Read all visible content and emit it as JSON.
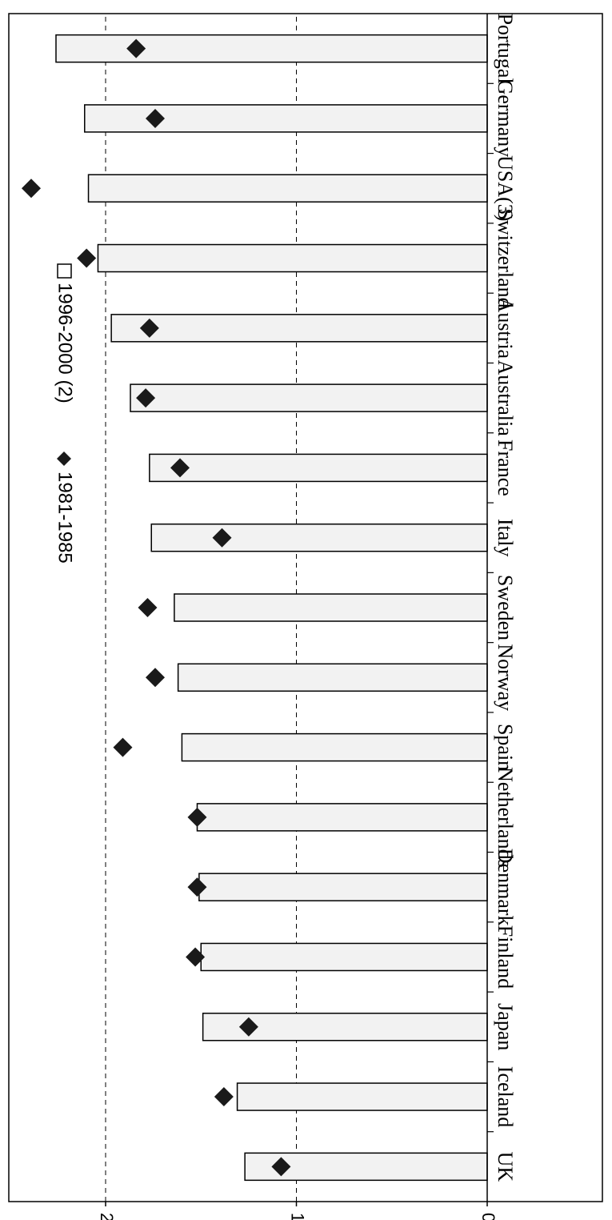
{
  "chart_data": {
    "type": "bar",
    "orientation": "rotated-180",
    "categories": [
      "UK",
      "Iceland",
      "Japan",
      "Finland",
      "Denmark",
      "Netherlands",
      "Spain",
      "Norway",
      "Sweden",
      "Italy",
      "France",
      "Australia",
      "Austria",
      "Switzerland",
      "USA(3)",
      "Germany",
      "Portugal"
    ],
    "series": [
      {
        "name": "1996-2000 (2)",
        "kind": "bar",
        "values": [
          1.27,
          1.31,
          1.49,
          1.5,
          1.51,
          1.52,
          1.6,
          1.62,
          1.64,
          1.76,
          1.77,
          1.87,
          1.97,
          2.04,
          2.09,
          2.11,
          2.26
        ]
      },
      {
        "name": "1981-1985",
        "kind": "marker",
        "values": [
          1.08,
          1.38,
          1.25,
          1.53,
          1.52,
          1.52,
          1.91,
          1.74,
          1.78,
          1.39,
          1.61,
          1.79,
          1.77,
          2.1,
          2.39,
          1.74,
          1.84
        ]
      }
    ],
    "yticks": [
      "0",
      "1",
      "2"
    ],
    "ylim": [
      0,
      2.5
    ],
    "grid": "dashed horizontal at 1 and 2",
    "legend": "top-left",
    "colors": {
      "bar_fill": "#f2f2f2",
      "bar_stroke": "#000000",
      "marker": "#1a1a1a",
      "grid": "#000000"
    }
  }
}
